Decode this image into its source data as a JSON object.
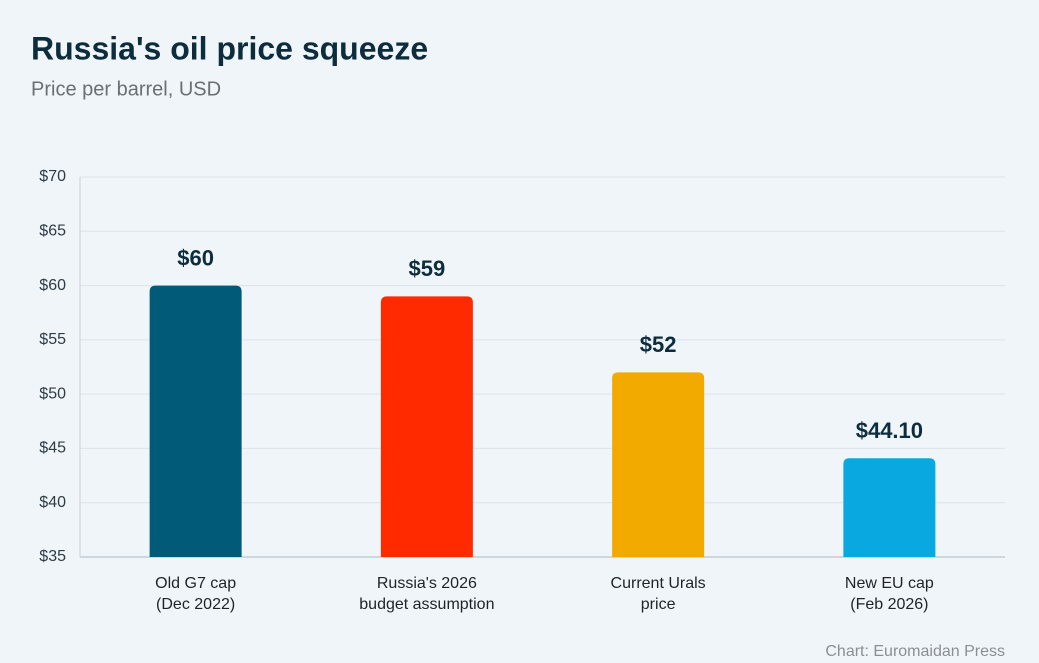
{
  "chart_data": {
    "type": "bar",
    "title": "Russia's oil price squeeze",
    "subtitle": "Price per barrel, USD",
    "categories": [
      [
        "Old G7 cap",
        "(Dec 2022)"
      ],
      [
        "Russia's 2026",
        "budget assumption"
      ],
      [
        "Current Urals",
        "price"
      ],
      [
        "New EU cap",
        "(Feb 2026)"
      ]
    ],
    "values": [
      60,
      59,
      52,
      44.1
    ],
    "value_labels": [
      "$60",
      "$59",
      "$52",
      "$44.10"
    ],
    "colors": [
      "#005a78",
      "#ff2a00",
      "#f2aa00",
      "#0aa8e0"
    ],
    "ylim": [
      35,
      70
    ],
    "yticks": [
      {
        "value": 35,
        "label": "$35"
      },
      {
        "value": 40,
        "label": "$40"
      },
      {
        "value": 45,
        "label": "$45"
      },
      {
        "value": 50,
        "label": "$50"
      },
      {
        "value": 55,
        "label": "$55"
      },
      {
        "value": 60,
        "label": "$60"
      },
      {
        "value": 65,
        "label": "$65"
      },
      {
        "value": 70,
        "label": "$70"
      }
    ],
    "grid": true,
    "source": "Chart: Euromaidan Press"
  }
}
